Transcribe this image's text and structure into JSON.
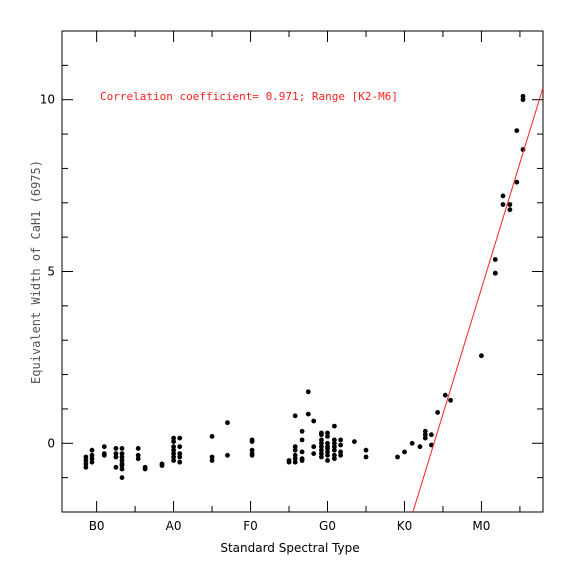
{
  "chart_data": {
    "type": "scatter",
    "title": "",
    "xlabel": "Standard Spectral Type",
    "ylabel": "Equivalent Width of CaH1 (6975)",
    "annotation": "Correlation coefficient= 0.971; Range [K2-M6]",
    "x_tick_labels": [
      "B0",
      "A0",
      "F0",
      "G0",
      "K0",
      "M0"
    ],
    "x_tick_values": [
      0,
      10,
      20,
      30,
      40,
      50
    ],
    "y_tick_labels": [
      "0",
      "5",
      "10"
    ],
    "y_tick_values": [
      0,
      5,
      10
    ],
    "xlim": [
      -4.5,
      58
    ],
    "ylim": [
      -2,
      12
    ],
    "grid": false,
    "point_color": "#000000",
    "fit_color": "#ff2020",
    "fit_line": {
      "x": [
        41.1,
        58
      ],
      "y": [
        -2,
        10.35
      ]
    },
    "points": [
      [
        -1.4,
        -0.4
      ],
      [
        -1.4,
        -0.5
      ],
      [
        -1.4,
        -0.6
      ],
      [
        -1.4,
        -0.7
      ],
      [
        -0.6,
        -0.2
      ],
      [
        -0.6,
        -0.35
      ],
      [
        -0.6,
        -0.45
      ],
      [
        -0.6,
        -0.55
      ],
      [
        1,
        -0.1
      ],
      [
        1,
        -0.3
      ],
      [
        1,
        -0.35
      ],
      [
        2.5,
        -0.15
      ],
      [
        2.5,
        -0.3
      ],
      [
        2.5,
        -0.4
      ],
      [
        2.5,
        -0.7
      ],
      [
        3.3,
        -0.15
      ],
      [
        3.3,
        -0.3
      ],
      [
        3.3,
        -0.4
      ],
      [
        3.3,
        -0.5
      ],
      [
        3.3,
        -0.6
      ],
      [
        3.3,
        -0.65
      ],
      [
        3.3,
        -0.75
      ],
      [
        3.3,
        -1.0
      ],
      [
        5.4,
        -0.15
      ],
      [
        5.4,
        -0.35
      ],
      [
        5.4,
        -0.45
      ],
      [
        6.3,
        -0.7
      ],
      [
        6.3,
        -0.75
      ],
      [
        8.5,
        -0.6
      ],
      [
        8.5,
        -0.65
      ],
      [
        10,
        0.15
      ],
      [
        10,
        0.05
      ],
      [
        10,
        -0.1
      ],
      [
        10,
        -0.2
      ],
      [
        10,
        -0.3
      ],
      [
        10,
        -0.4
      ],
      [
        10,
        -0.5
      ],
      [
        10.8,
        0.15
      ],
      [
        10.8,
        -0.1
      ],
      [
        10.8,
        -0.3
      ],
      [
        10.8,
        -0.4
      ],
      [
        10.8,
        -0.55
      ],
      [
        15,
        0.2
      ],
      [
        15,
        -0.4
      ],
      [
        15,
        -0.5
      ],
      [
        17,
        0.6
      ],
      [
        17,
        -0.35
      ],
      [
        20.2,
        0.1
      ],
      [
        20.2,
        0.05
      ],
      [
        20.2,
        -0.2
      ],
      [
        20.2,
        -0.3
      ],
      [
        20.2,
        -0.35
      ],
      [
        25,
        -0.5
      ],
      [
        25,
        -0.55
      ],
      [
        25.8,
        0.8
      ],
      [
        25.8,
        -0.1
      ],
      [
        25.8,
        -0.2
      ],
      [
        25.8,
        -0.35
      ],
      [
        25.8,
        -0.45
      ],
      [
        25.8,
        -0.55
      ],
      [
        26.7,
        0.35
      ],
      [
        26.7,
        0.1
      ],
      [
        26.7,
        -0.25
      ],
      [
        26.7,
        -0.45
      ],
      [
        26.7,
        -0.5
      ],
      [
        27.5,
        1.5
      ],
      [
        27.5,
        0.85
      ],
      [
        28.2,
        0.65
      ],
      [
        28.2,
        -0.1
      ],
      [
        28.2,
        -0.3
      ],
      [
        29.2,
        0.3
      ],
      [
        29.2,
        0.25
      ],
      [
        29.2,
        0.1
      ],
      [
        29.2,
        0.0
      ],
      [
        29.2,
        -0.1
      ],
      [
        29.2,
        -0.2
      ],
      [
        29.2,
        -0.3
      ],
      [
        29.2,
        -0.4
      ],
      [
        30,
        0.3
      ],
      [
        30,
        0.2
      ],
      [
        30,
        0.0
      ],
      [
        30,
        -0.1
      ],
      [
        30,
        -0.15
      ],
      [
        30,
        -0.25
      ],
      [
        30,
        -0.35
      ],
      [
        30,
        -0.5
      ],
      [
        30.9,
        0.5
      ],
      [
        30.9,
        0.1
      ],
      [
        30.9,
        0.0
      ],
      [
        30.9,
        -0.1
      ],
      [
        30.9,
        -0.2
      ],
      [
        30.9,
        -0.35
      ],
      [
        30.9,
        -0.45
      ],
      [
        31.7,
        0.1
      ],
      [
        31.7,
        -0.05
      ],
      [
        31.7,
        -0.25
      ],
      [
        31.7,
        -0.35
      ],
      [
        33.5,
        0.05
      ],
      [
        35,
        -0.2
      ],
      [
        35,
        -0.4
      ],
      [
        39.1,
        -0.4
      ],
      [
        40,
        -0.25
      ],
      [
        41,
        0.0
      ],
      [
        42,
        -0.1
      ],
      [
        42.7,
        0.35
      ],
      [
        42.7,
        0.25
      ],
      [
        42.7,
        0.15
      ],
      [
        43.5,
        0.25
      ],
      [
        43.5,
        -0.05
      ],
      [
        44.3,
        0.9
      ],
      [
        45.3,
        1.4
      ],
      [
        46,
        1.25
      ],
      [
        50,
        2.55
      ],
      [
        51.8,
        5.35
      ],
      [
        51.8,
        4.95
      ],
      [
        51.8,
        4.95
      ],
      [
        52.8,
        7.2
      ],
      [
        52.8,
        6.95
      ],
      [
        53.7,
        6.95
      ],
      [
        53.7,
        6.8
      ],
      [
        54.6,
        9.1
      ],
      [
        54.6,
        7.6
      ],
      [
        55.4,
        10.1
      ],
      [
        55.4,
        10.0
      ],
      [
        55.4,
        8.55
      ]
    ]
  }
}
